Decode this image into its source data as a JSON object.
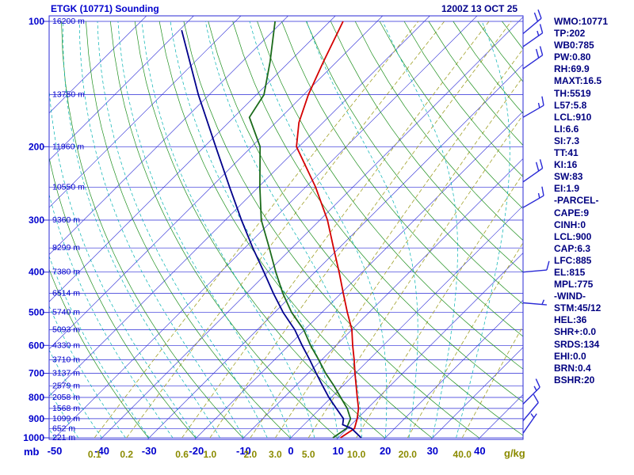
{
  "header": {
    "title": "ETGK (10771) Sounding",
    "datetime": "1200Z 13 OCT 25"
  },
  "indices": [
    "WMO:10771",
    "TP:202",
    "WB0:785",
    "PW:0.80",
    "RH:69.9",
    "MAXT:16.5",
    "TH:5519",
    "L57:5.8",
    "LCL:910",
    "LI:6.6",
    "SI:7.3",
    "TT:41",
    "KI:16",
    "SW:83",
    "EI:1.9",
    "-PARCEL-",
    "CAPE:9",
    "CINH:0",
    "LCL:900",
    "CAP:6.3",
    "LFC:885",
    "EL:815",
    "MPL:775",
    "-WIND-",
    "STM:45/12",
    "HEL:36",
    "SHR+:0.0",
    "SRDS:134",
    "EHI:0.0",
    "BRN:0.4",
    "BSHR:20"
  ],
  "chart_data": {
    "type": "skewt-log-p sounding",
    "pressure_axis": {
      "unit": "mb",
      "ticks": [
        100,
        200,
        300,
        400,
        500,
        600,
        700,
        800,
        900,
        1000
      ]
    },
    "temp_axis": {
      "unit": "C",
      "ticks": [
        -50,
        -40,
        -30,
        -20,
        -10,
        0,
        10,
        20,
        30,
        40
      ]
    },
    "mixing_ratio_axis": {
      "unit": "g/kg",
      "ticks": [
        "0.1",
        "0.2",
        "0.6",
        "1.0",
        "2.0",
        "3.0",
        "5.0",
        "10.0",
        "20.0",
        "40.0"
      ]
    },
    "height_labels": [
      [
        100,
        "16200 m"
      ],
      [
        150,
        "13750 m"
      ],
      [
        200,
        "11960 m"
      ],
      [
        250,
        "10550 m"
      ],
      [
        300,
        "9360 m"
      ],
      [
        350,
        "8299 m"
      ],
      [
        400,
        "7380 m"
      ],
      [
        450,
        "6514 m"
      ],
      [
        500,
        "5740 m"
      ],
      [
        550,
        "5093 m"
      ],
      [
        600,
        "4330 m"
      ],
      [
        650,
        "3710 m"
      ],
      [
        700,
        "3137 m"
      ],
      [
        750,
        "2579 m"
      ],
      [
        800,
        "2058 m"
      ],
      [
        850,
        "1568 m"
      ],
      [
        900,
        "1099 m"
      ],
      [
        950,
        "652 m"
      ],
      [
        1000,
        "221 m"
      ]
    ],
    "profiles": {
      "temperature": {
        "color": "#d40000",
        "points": [
          [
            1000,
            10.5
          ],
          [
            950,
            11.5
          ],
          [
            900,
            10.0
          ],
          [
            850,
            8.1
          ],
          [
            800,
            5.5
          ],
          [
            750,
            2.8
          ],
          [
            700,
            -0.1
          ],
          [
            650,
            -3.1
          ],
          [
            600,
            -6.5
          ],
          [
            550,
            -10.0
          ],
          [
            500,
            -14.6
          ],
          [
            450,
            -19.5
          ],
          [
            400,
            -24.9
          ],
          [
            350,
            -31.2
          ],
          [
            300,
            -38.4
          ],
          [
            250,
            -47.9
          ],
          [
            200,
            -60.5
          ],
          [
            175,
            -65.1
          ],
          [
            150,
            -69.0
          ],
          [
            125,
            -72.8
          ],
          [
            100,
            -77.2
          ]
        ]
      },
      "dewpoint": {
        "color": "#1b6b1b",
        "points": [
          [
            1000,
            8.9
          ],
          [
            950,
            9.8
          ],
          [
            900,
            8.6
          ],
          [
            850,
            5.7
          ],
          [
            800,
            2.0
          ],
          [
            750,
            -1.9
          ],
          [
            700,
            -6.3
          ],
          [
            650,
            -10.6
          ],
          [
            600,
            -15.4
          ],
          [
            550,
            -20.2
          ],
          [
            500,
            -26.4
          ],
          [
            450,
            -32.3
          ],
          [
            400,
            -38.3
          ],
          [
            350,
            -44.8
          ],
          [
            300,
            -52.4
          ],
          [
            250,
            -59.7
          ],
          [
            200,
            -68.2
          ],
          [
            170,
            -76.7
          ],
          [
            150,
            -78.4
          ],
          [
            125,
            -84.1
          ],
          [
            100,
            -91.6
          ]
        ]
      },
      "wetbulb": {
        "color": "#00008b",
        "points": [
          [
            1000,
            14.9
          ],
          [
            950,
            10.9
          ],
          [
            930,
            8.2
          ],
          [
            900,
            7.1
          ],
          [
            850,
            3.4
          ],
          [
            800,
            -0.5
          ],
          [
            750,
            -4.3
          ],
          [
            700,
            -8.3
          ],
          [
            650,
            -12.5
          ],
          [
            600,
            -17.2
          ],
          [
            550,
            -22.1
          ],
          [
            500,
            -28.2
          ],
          [
            450,
            -34.3
          ],
          [
            400,
            -40.8
          ],
          [
            350,
            -48.3
          ],
          [
            300,
            -56.6
          ],
          [
            250,
            -66.1
          ],
          [
            200,
            -77.6
          ],
          [
            150,
            -92.3
          ],
          [
            105,
            -109.5
          ]
        ]
      }
    },
    "wind_barbs": [
      {
        "p": 107,
        "dir": 50,
        "spd": 20
      },
      {
        "p": 115,
        "dir": 55,
        "spd": 15
      },
      {
        "p": 130,
        "dir": 55,
        "spd": 20
      },
      {
        "p": 170,
        "dir": 60,
        "spd": 15
      },
      {
        "p": 243,
        "dir": 55,
        "spd": 20
      },
      {
        "p": 280,
        "dir": 60,
        "spd": 15
      },
      {
        "p": 400,
        "dir": 85,
        "spd": 10
      },
      {
        "p": 474,
        "dir": 95,
        "spd": 5
      },
      {
        "p": 830,
        "dir": 45,
        "spd": 15
      },
      {
        "p": 910,
        "dir": 40,
        "spd": 10
      },
      {
        "p": 975,
        "dir": 35,
        "spd": 5
      }
    ],
    "grid": {
      "pressure_line_step": 50,
      "isotherm_min": -120,
      "isotherm_max": 40,
      "isotherm_step": 10,
      "theta_min": 243,
      "theta_max": 443,
      "theta_step": 10,
      "moist_min": -55,
      "moist_max": 35,
      "moist_step": 5
    },
    "colors": {
      "grid": "#2929d6",
      "dry_adiabat": "#1d8f1d",
      "moist_adiabat": "#00b2b2",
      "mixing_ratio": "#a0a028",
      "barb": "#2929d6",
      "label_blue": "#0000cd",
      "label_olive": "#8b8b00",
      "title": "#0000cd",
      "datetime": "#00008b",
      "indices": "#000080"
    }
  }
}
